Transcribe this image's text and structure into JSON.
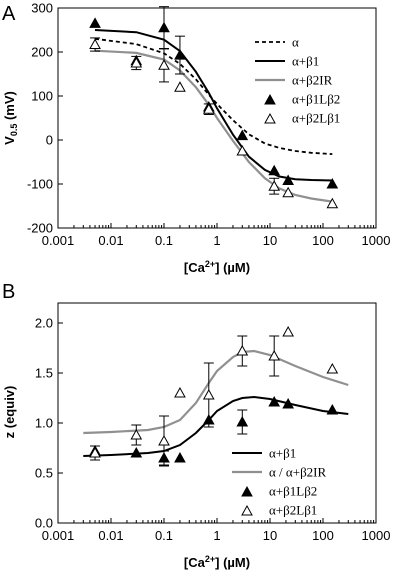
{
  "chart_data": [
    {
      "panel": "A",
      "type": "scatter",
      "xlabel": "[Ca2+] (µM)",
      "ylabel": "V0.5 (mV)",
      "xscale": "log",
      "xlim": [
        0.001,
        1000
      ],
      "ylim": [
        -200,
        300
      ],
      "xticks": [
        "0.001",
        "0.01",
        "0.1",
        "1",
        "10",
        "100",
        "1000"
      ],
      "yticks": [
        "-200",
        "-100",
        "0",
        "100",
        "200",
        "300"
      ],
      "legend_position": "top-right",
      "series": [
        {
          "name": "α",
          "kind": "line",
          "style": "dashed",
          "color": "#000000",
          "x": [
            0.005,
            0.03,
            0.1,
            0.2,
            0.4,
            0.7,
            1,
            2,
            4,
            8,
            15,
            30,
            60,
            150
          ],
          "y": [
            230,
            218,
            197,
            173,
            138,
            103,
            82,
            45,
            13,
            -8,
            -18,
            -25,
            -29,
            -32
          ]
        },
        {
          "name": "α+β1",
          "kind": "line",
          "style": "solid",
          "color": "#000000",
          "x": [
            0.005,
            0.03,
            0.1,
            0.2,
            0.4,
            0.7,
            1,
            2,
            4,
            8,
            15,
            30,
            60,
            150
          ],
          "y": [
            250,
            245,
            228,
            202,
            155,
            107,
            72,
            12,
            -38,
            -68,
            -83,
            -89,
            -91,
            -92
          ]
        },
        {
          "name": "α+β2IR",
          "kind": "line",
          "style": "solid",
          "color": "#909090",
          "x": [
            0.005,
            0.03,
            0.1,
            0.2,
            0.4,
            0.7,
            1,
            2,
            4,
            8,
            15,
            30,
            60,
            150
          ],
          "y": [
            203,
            198,
            183,
            158,
            120,
            80,
            50,
            -2,
            -50,
            -87,
            -110,
            -125,
            -133,
            -140
          ]
        },
        {
          "name": "α+β1Lβ2",
          "kind": "marker",
          "marker": "filled-triangle",
          "x": [
            0.005,
            0.03,
            0.1,
            0.2,
            0.7,
            3,
            12,
            22,
            150
          ],
          "y": [
            265,
            180,
            255,
            193,
            75,
            10,
            -70,
            -92,
            -100
          ],
          "err": [
            0,
            0,
            48,
            43,
            0,
            0,
            0,
            0,
            0
          ]
        },
        {
          "name": "α+β2Lβ1",
          "kind": "marker",
          "marker": "open-triangle",
          "x": [
            0.005,
            0.03,
            0.1,
            0.2,
            0.7,
            3,
            12,
            22,
            150
          ],
          "y": [
            217,
            175,
            170,
            120,
            70,
            -25,
            -105,
            -120,
            -145
          ],
          "err": [
            15,
            15,
            38,
            0,
            12,
            0,
            18,
            0,
            0
          ]
        }
      ]
    },
    {
      "panel": "B",
      "type": "scatter",
      "xlabel": "[Ca2+] (µM)",
      "ylabel": "z (equiv)",
      "xscale": "log",
      "xlim": [
        0.001,
        1000
      ],
      "ylim": [
        0.0,
        2.2
      ],
      "xticks": [
        "0.001",
        "0.01",
        "0.1",
        "1",
        "10",
        "100",
        "1000"
      ],
      "yticks": [
        "0.0",
        "0.5",
        "1.0",
        "1.5",
        "2.0"
      ],
      "legend_position": "bottom-right",
      "series": [
        {
          "name": "α+β1",
          "kind": "line",
          "style": "solid",
          "color": "#000000",
          "x": [
            0.003,
            0.01,
            0.05,
            0.1,
            0.2,
            0.4,
            0.7,
            1,
            2,
            3,
            5,
            10,
            30,
            100,
            300
          ],
          "y": [
            0.67,
            0.68,
            0.7,
            0.72,
            0.78,
            0.9,
            1.03,
            1.12,
            1.22,
            1.25,
            1.26,
            1.24,
            1.18,
            1.12,
            1.09
          ]
        },
        {
          "name": "α / α+β2IR",
          "kind": "line",
          "style": "solid",
          "color": "#909090",
          "x": [
            0.003,
            0.01,
            0.05,
            0.1,
            0.2,
            0.4,
            0.7,
            1,
            2,
            3,
            5,
            10,
            30,
            100,
            300
          ],
          "y": [
            0.9,
            0.91,
            0.93,
            0.96,
            1.03,
            1.2,
            1.4,
            1.52,
            1.66,
            1.71,
            1.72,
            1.68,
            1.57,
            1.46,
            1.38
          ]
        },
        {
          "name": "α+β1Lβ2",
          "kind": "marker",
          "marker": "filled-triangle",
          "x": [
            0.005,
            0.03,
            0.1,
            0.2,
            0.7,
            3,
            12,
            22,
            150
          ],
          "y": [
            0.72,
            0.7,
            0.65,
            0.65,
            1.03,
            1.01,
            1.21,
            1.19,
            1.13
          ],
          "err": [
            0,
            0,
            0.07,
            0,
            0,
            0.12,
            0,
            0,
            0
          ]
        },
        {
          "name": "α+β2Lβ1",
          "kind": "marker",
          "marker": "open-triangle",
          "x": [
            0.005,
            0.03,
            0.1,
            0.2,
            0.7,
            3,
            12,
            22,
            150
          ],
          "y": [
            0.7,
            0.88,
            0.82,
            1.3,
            1.28,
            1.72,
            1.67,
            1.91,
            1.54
          ],
          "err": [
            0.07,
            0.1,
            0.25,
            0,
            0.32,
            0.15,
            0.2,
            0,
            0
          ]
        }
      ]
    }
  ],
  "panels": {
    "a": {
      "letter": "A",
      "ylabel_main": "V",
      "ylabel_sub": "0.5",
      "ylabel_rest": " (mV)",
      "xlabel_pre": "[Ca",
      "xlabel_sup": "2+",
      "xlabel_post": "] (µM)"
    },
    "b": {
      "letter": "B",
      "ylabel": "z (equiv)",
      "xlabel_pre": "[Ca",
      "xlabel_sup": "2+",
      "xlabel_post": "] (µM)"
    }
  }
}
